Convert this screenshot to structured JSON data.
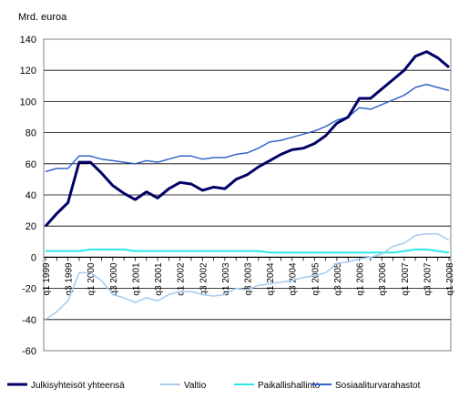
{
  "chart_data": {
    "type": "line",
    "unit": "Mrd. euroa",
    "ylim": [
      -60,
      140
    ],
    "yticks": [
      -60,
      -40,
      -20,
      0,
      20,
      40,
      60,
      80,
      100,
      120,
      140
    ],
    "grid": "horizontal",
    "legend_placement": "bottom",
    "x_tick_labels": [
      "q1 1999",
      "q3 1999",
      "q1 2000",
      "q3 2000",
      "q1 2001",
      "q3 2001",
      "q1 2002",
      "q3 2002",
      "q1 2003",
      "q3 2003",
      "q1 2004",
      "q3 2004",
      "q1 2005",
      "q3 2005",
      "q1 2006",
      "q3 2006",
      "q1 2007",
      "q3 2007",
      "q1 2008"
    ],
    "x": [
      "1999q1",
      "1999q2",
      "1999q3",
      "1999q4",
      "2000q1",
      "2000q2",
      "2000q3",
      "2000q4",
      "2001q1",
      "2001q2",
      "2001q3",
      "2001q4",
      "2002q1",
      "2002q2",
      "2002q3",
      "2002q4",
      "2003q1",
      "2003q2",
      "2003q3",
      "2003q4",
      "2004q1",
      "2004q2",
      "2004q3",
      "2004q4",
      "2005q1",
      "2005q2",
      "2005q3",
      "2005q4",
      "2006q1",
      "2006q2",
      "2006q3",
      "2006q4",
      "2007q1",
      "2007q2",
      "2007q3",
      "2007q4",
      "2008q1"
    ],
    "series": [
      {
        "name": "Julkisyhteisöt yhteensä",
        "color": "#000066",
        "values": [
          20,
          28,
          35,
          61,
          61,
          54,
          46,
          41,
          37,
          42,
          38,
          44,
          48,
          47,
          43,
          45,
          44,
          50,
          53,
          58,
          62,
          66,
          69,
          70,
          73,
          78,
          86,
          90,
          102,
          102,
          108,
          114,
          120,
          129,
          132,
          128,
          122
        ]
      },
      {
        "name": "Valtio",
        "color": "#a6cbec",
        "values": [
          -40,
          -35,
          -28,
          -10,
          -10,
          -15,
          -24,
          -26,
          -29,
          -26,
          -28,
          -24,
          -22,
          -22,
          -24,
          -25,
          -24,
          -20,
          -21,
          -18,
          -17,
          -16,
          -15,
          -13,
          -12,
          -10,
          -4,
          -3,
          -1,
          0,
          2,
          7,
          9,
          14,
          15,
          15,
          11
        ]
      },
      {
        "name": "Paikallishallinto",
        "color": "#2ce6e6",
        "values": [
          4,
          4,
          4,
          4,
          5,
          5,
          5,
          5,
          4,
          4,
          4,
          4,
          4,
          4,
          4,
          4,
          4,
          4,
          4,
          4,
          3,
          3,
          3,
          3,
          3,
          3,
          3,
          3,
          3,
          3,
          3,
          3,
          4,
          5,
          5,
          4,
          3
        ]
      },
      {
        "name": "Sosiaaliturvarahastot",
        "color": "#3366cc",
        "values": [
          55,
          57,
          57,
          65,
          65,
          63,
          62,
          61,
          60,
          62,
          61,
          63,
          65,
          65,
          63,
          64,
          64,
          66,
          67,
          70,
          74,
          75,
          77,
          79,
          81,
          84,
          88,
          90,
          96,
          95,
          98,
          101,
          104,
          109,
          111,
          109,
          107
        ]
      }
    ]
  }
}
